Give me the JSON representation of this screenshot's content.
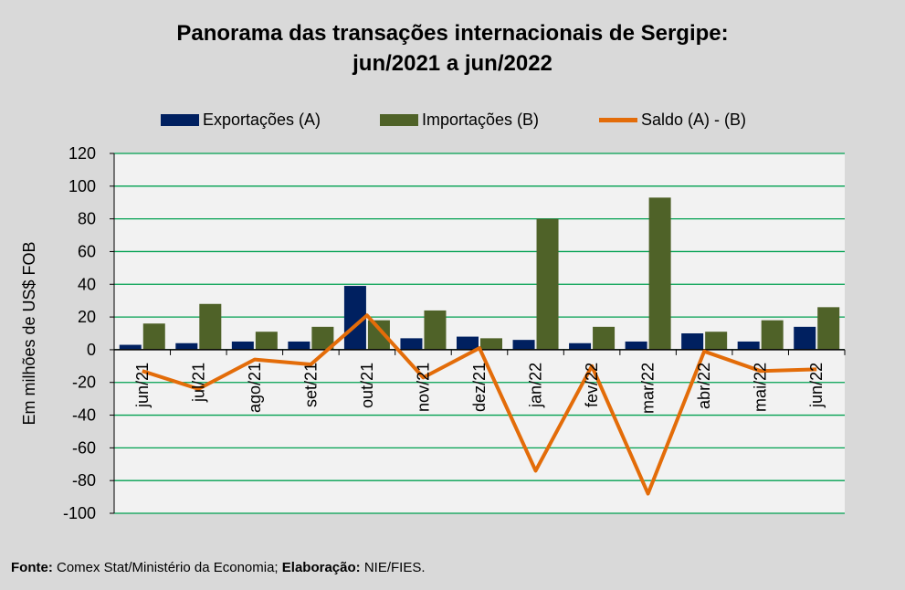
{
  "title_line1": "Panorama  das transações internacionais de Sergipe:",
  "title_line2": "jun/2021 a jun/2022",
  "legend": {
    "exports": "Exportações (A)",
    "imports": "Importações (B)",
    "balance": "Saldo (A) - (B)"
  },
  "colors": {
    "exports": "#002060",
    "imports": "#4f6228",
    "balance": "#e36c09",
    "grid": "#00a050",
    "plot_bg": "#f2f2f2"
  },
  "source": {
    "label_fonte": "Fonte:",
    "fonte": "Comex Stat/Ministério da Economia;",
    "label_elab": "Elaboração:",
    "elab": "NIE/FIES."
  },
  "chart_data": {
    "type": "bar",
    "title": "Panorama  das transações internacionais de Sergipe: jun/2021 a jun/2022",
    "ylabel": "Em milhões de US$ FOB",
    "xlabel": "",
    "ylim": [
      -100,
      120
    ],
    "yticks": [
      120,
      100,
      80,
      60,
      40,
      20,
      0,
      -20,
      -40,
      -60,
      -80,
      -100
    ],
    "categories": [
      "jun/21",
      "jul/21",
      "ago/21",
      "set/21",
      "out/21",
      "nov/21",
      "dez/21",
      "jan/22",
      "fev/22",
      "mar/22",
      "abr/22",
      "mai/22",
      "jun/22"
    ],
    "series": [
      {
        "name": "Exportações (A)",
        "type": "bar",
        "values": [
          3,
          4,
          5,
          5,
          39,
          7,
          8,
          6,
          4,
          5,
          10,
          5,
          14
        ]
      },
      {
        "name": "Importações (B)",
        "type": "bar",
        "values": [
          16,
          28,
          11,
          14,
          18,
          24,
          7,
          80,
          14,
          93,
          11,
          18,
          26
        ]
      },
      {
        "name": "Saldo (A) - (B)",
        "type": "line",
        "values": [
          -13,
          -24,
          -6,
          -9,
          21,
          -17,
          1,
          -74,
          -10,
          -88,
          -1,
          -13,
          -12
        ]
      }
    ],
    "grid": true,
    "legend_position": "top"
  }
}
